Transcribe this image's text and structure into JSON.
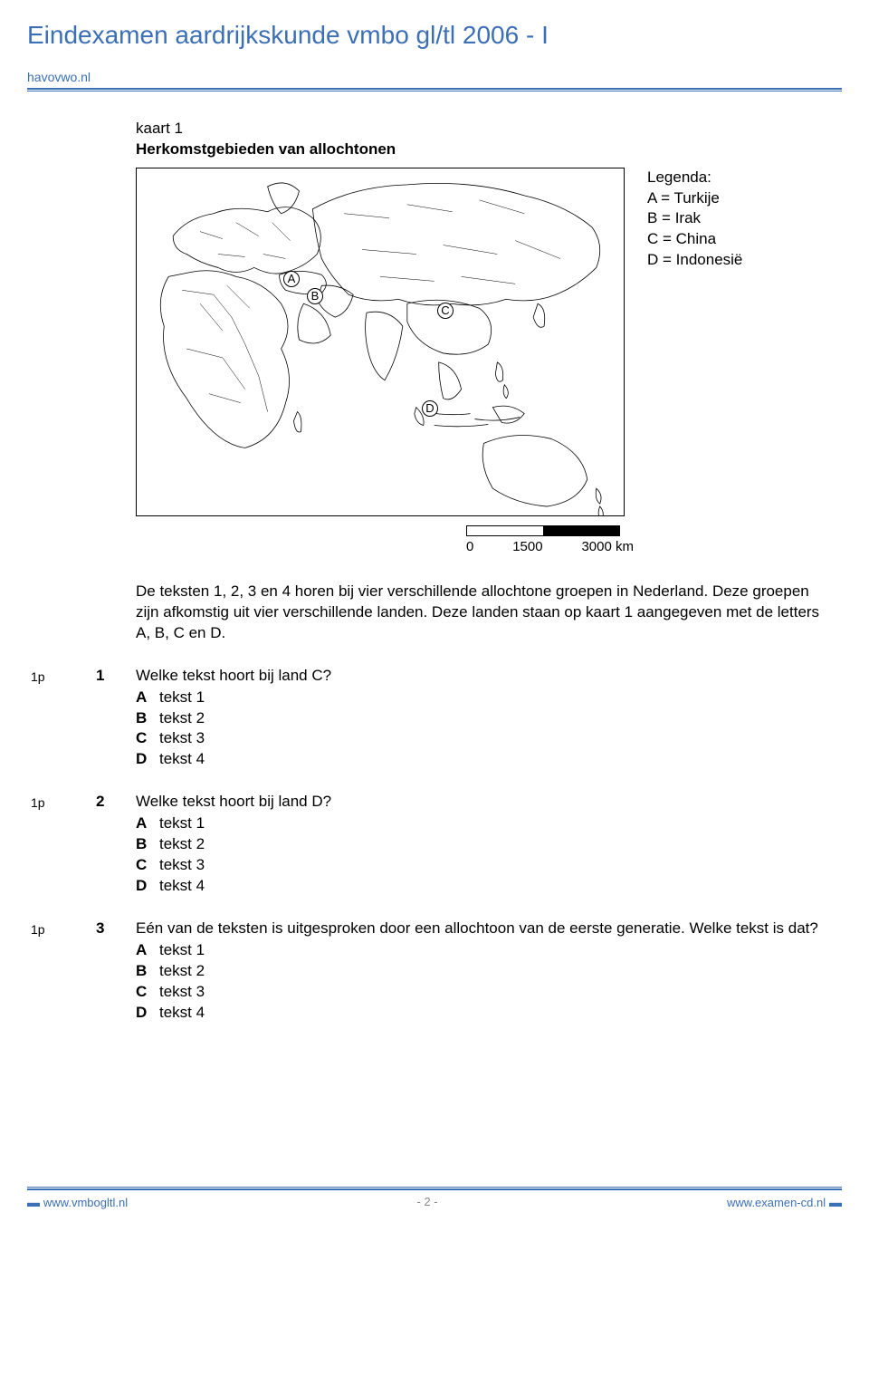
{
  "header": {
    "title": "Eindexamen aardrijkskunde vmbo gl/tl  2006 - I",
    "source": "havovwo.nl"
  },
  "figure": {
    "map_num": "kaart 1",
    "map_title": "Herkomstgebieden van allochtonen",
    "legend_title": "Legenda:",
    "legend_items": [
      "A = Turkije",
      "B = Irak",
      "C = China",
      "D = Indonesië"
    ],
    "map_labels": [
      "A",
      "B",
      "C",
      "D"
    ],
    "scale": {
      "ticks": [
        "0",
        "1500",
        "3000 km"
      ]
    }
  },
  "intro": "De teksten 1, 2, 3 en 4 horen bij vier verschillende allochtone groepen in Nederland. Deze groepen zijn afkomstig uit vier verschillende landen. Deze landen staan op kaart 1 aangegeven met de letters A, B, C en D.",
  "questions": [
    {
      "points": "1p",
      "number": "1",
      "text": "Welke tekst hoort bij land C?",
      "options": [
        {
          "label": "A",
          "text": "tekst 1"
        },
        {
          "label": "B",
          "text": "tekst 2"
        },
        {
          "label": "C",
          "text": "tekst 3"
        },
        {
          "label": "D",
          "text": "tekst 4"
        }
      ]
    },
    {
      "points": "1p",
      "number": "2",
      "text": "Welke tekst hoort bij land D?",
      "options": [
        {
          "label": "A",
          "text": "tekst 1"
        },
        {
          "label": "B",
          "text": "tekst 2"
        },
        {
          "label": "C",
          "text": "tekst 3"
        },
        {
          "label": "D",
          "text": "tekst 4"
        }
      ]
    },
    {
      "points": "1p",
      "number": "3",
      "text": "Eén van de teksten is uitgesproken door een allochtoon van de eerste generatie. Welke tekst is dat?",
      "options": [
        {
          "label": "A",
          "text": "tekst 1"
        },
        {
          "label": "B",
          "text": "tekst 2"
        },
        {
          "label": "C",
          "text": "tekst 3"
        },
        {
          "label": "D",
          "text": "tekst 4"
        }
      ]
    }
  ],
  "footer": {
    "left_prefix": "▬ ",
    "left": "www.vmbogltl.nl",
    "center": "- 2 -",
    "right": "www.examen-cd.nl",
    "right_suffix": " ▬"
  }
}
